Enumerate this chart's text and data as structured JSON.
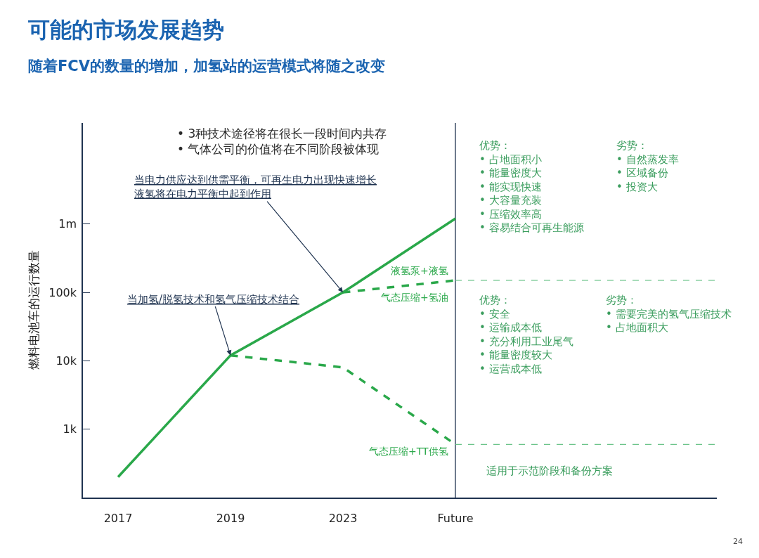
{
  "chart_data": {
    "type": "line",
    "title": "可能的市场发展趋势",
    "subtitle": "随着FCV的数量的增加，加氢站的运营模式将随之改变",
    "ylabel": "燃料电池车的运行数量",
    "categories": [
      "2017",
      "2019",
      "2023",
      "Future"
    ],
    "log": "y",
    "ylim": [
      100,
      30000000
    ],
    "yticks": [
      {
        "value": 1000,
        "label": "1k"
      },
      {
        "value": 10000,
        "label": "10k"
      },
      {
        "value": 100000,
        "label": "100k"
      },
      {
        "value": 1000000,
        "label": "1m"
      }
    ],
    "series": [
      {
        "name": "液氢泵+液氢",
        "color": "#2aa84a",
        "line_style": "solid",
        "values": [
          200,
          12000,
          100000,
          1200000
        ]
      },
      {
        "name": "气态压缩+氢油",
        "color": "#2aa84a",
        "line_style": "dashed",
        "values": [
          null,
          null,
          100000,
          150000
        ]
      },
      {
        "name": "气态压缩+TT供氢",
        "color": "#2aa84a",
        "line_style": "dashed",
        "values": [
          null,
          12000,
          8000,
          600
        ]
      }
    ],
    "ref_lines": [
      {
        "axis": "x",
        "value": "Future",
        "color": "#1f3350",
        "line_style": "solid"
      },
      {
        "axis": "y",
        "value": 150000,
        "color": "#6cc48a",
        "line_style": "dashed"
      },
      {
        "axis": "y",
        "value": 600,
        "color": "#6cc48a",
        "line_style": "dashed"
      }
    ],
    "grid": false,
    "legend": false,
    "annotations": [
      "• 3种技术途径将在很长一段时间内共存\n• 气体公司的价值将在不同阶段被体现",
      {
        "text": "当电力供应达到供需平衡，可再生电力出现快速增长液氢将在电力平衡中起到作用",
        "x": "2023",
        "y": 100000
      },
      {
        "text": "当加氢/脱氢技术和氢气压缩技术结合",
        "x": "2019",
        "y": 12000
      },
      "优势：\n• 占地面积小\n• 能量密度大\n• 能实现快速\n• 大容量充装\n• 压缩效率高\n• 容易结合可再生能源",
      "劣势：\n• 自然蒸发率\n• 区域备份\n• 投资大",
      "优势：\n• 安全\n• 运输成本低\n• 充分利用工业尾气\n• 能量密度较大\n• 运营成本低",
      "劣势：\n• 需要完美的氢气压缩技术\n• 占地面积大",
      "适用于示范阶段和备份方案",
      "24"
    ]
  }
}
